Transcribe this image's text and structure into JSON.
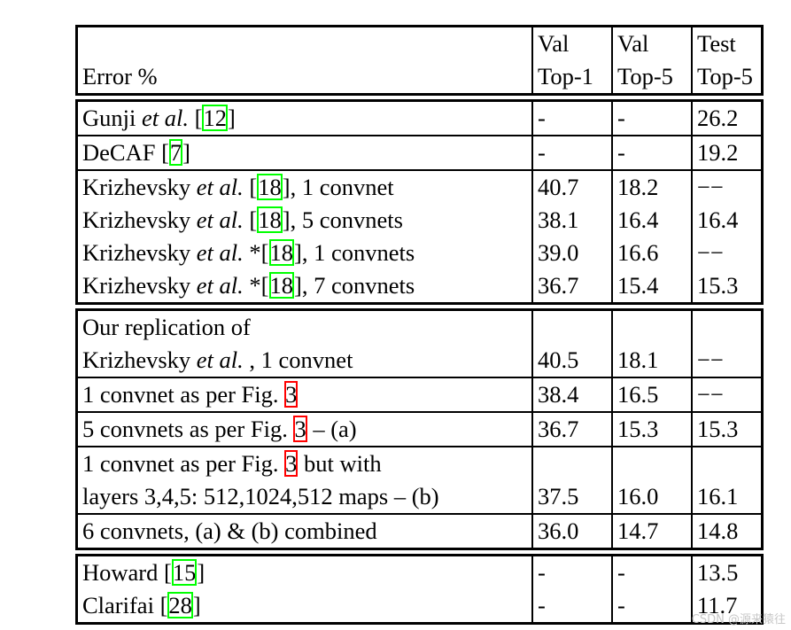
{
  "table": {
    "header": [
      [
        "",
        "Error %"
      ],
      [
        "Val",
        "Top-1"
      ],
      [
        "Val",
        "Top-5"
      ],
      [
        "Test",
        "Top-5"
      ]
    ],
    "groups": [
      {
        "rows": [
          {
            "sep": false,
            "label": [
              [
                {
                  "t": "Gunji "
                },
                {
                  "t": "et al.",
                  "i": true
                },
                {
                  "t": " "
                },
                {
                  "ref": "12",
                  "c": "green"
                }
              ]
            ],
            "values": [
              "-",
              "-",
              "26.2"
            ]
          },
          {
            "sep": true,
            "label": [
              [
                {
                  "t": "DeCAF "
                },
                {
                  "ref": "7",
                  "c": "green"
                }
              ]
            ],
            "values": [
              "-",
              "-",
              "19.2"
            ]
          },
          {
            "sep": true,
            "label": [
              [
                {
                  "t": "Krizhevsky "
                },
                {
                  "t": "et al.",
                  "i": true
                },
                {
                  "t": " "
                },
                {
                  "ref": "18",
                  "c": "green"
                },
                {
                  "t": ", 1 convnet"
                }
              ]
            ],
            "values": [
              "40.7",
              "18.2",
              "−−"
            ]
          },
          {
            "sep": false,
            "label": [
              [
                {
                  "t": "Krizhevsky "
                },
                {
                  "t": "et al.",
                  "i": true
                },
                {
                  "t": " "
                },
                {
                  "ref": "18",
                  "c": "green"
                },
                {
                  "t": ", 5 convnets"
                }
              ]
            ],
            "values": [
              "38.1",
              "16.4",
              "16.4"
            ]
          },
          {
            "sep": false,
            "label": [
              [
                {
                  "t": "Krizhevsky "
                },
                {
                  "t": "et al.",
                  "i": true
                },
                {
                  "t": " *"
                },
                {
                  "ref": "18",
                  "c": "green"
                },
                {
                  "t": ", 1 convnets"
                }
              ]
            ],
            "values": [
              "39.0",
              "16.6",
              "−−"
            ]
          },
          {
            "sep": false,
            "label": [
              [
                {
                  "t": "Krizhevsky "
                },
                {
                  "t": "et al.",
                  "i": true
                },
                {
                  "t": " *"
                },
                {
                  "ref": "18",
                  "c": "green"
                },
                {
                  "t": ", 7 convnets"
                }
              ]
            ],
            "values": [
              "36.7",
              "15.4",
              "15.3"
            ]
          }
        ]
      },
      {
        "rows": [
          {
            "sep": false,
            "label": [
              [
                {
                  "t": "Our replication of"
                }
              ],
              [
                {
                  "t": "Krizhevsky "
                },
                {
                  "t": "et al.",
                  "i": true
                },
                {
                  "t": " , 1 convnet"
                }
              ]
            ],
            "values": [
              "40.5",
              "18.1",
              "−−"
            ]
          },
          {
            "sep": true,
            "label": [
              [
                {
                  "t": "1 convnet as per Fig. "
                },
                {
                  "ref": "3",
                  "c": "red",
                  "nob": true
                }
              ]
            ],
            "values": [
              "38.4",
              "16.5",
              "−−"
            ]
          },
          {
            "sep": true,
            "label": [
              [
                {
                  "t": "5 convnets as per Fig. "
                },
                {
                  "ref": "3",
                  "c": "red",
                  "nob": true
                },
                {
                  "t": " – (a)"
                }
              ]
            ],
            "values": [
              "36.7",
              "15.3",
              "15.3"
            ]
          },
          {
            "sep": true,
            "label": [
              [
                {
                  "t": "1 convnet as per Fig. "
                },
                {
                  "ref": "3",
                  "c": "red",
                  "nob": true
                },
                {
                  "t": " but with"
                }
              ],
              [
                {
                  "t": "layers 3,4,5: 512,1024,512 maps – (b)"
                }
              ]
            ],
            "values": [
              "37.5",
              "16.0",
              "16.1"
            ]
          },
          {
            "sep": true,
            "label": [
              [
                {
                  "t": "6 convnets, (a) & (b) combined"
                }
              ]
            ],
            "values": [
              "36.0",
              "14.7",
              "14.8"
            ]
          }
        ]
      },
      {
        "rows": [
          {
            "sep": false,
            "label": [
              [
                {
                  "t": "Howard "
                },
                {
                  "ref": "15",
                  "c": "green"
                }
              ]
            ],
            "values": [
              "-",
              "-",
              "13.5"
            ]
          },
          {
            "sep": false,
            "label": [
              [
                {
                  "t": "Clarifai "
                },
                {
                  "ref": "28",
                  "c": "green"
                }
              ]
            ],
            "values": [
              "-",
              "-",
              "11.7"
            ]
          }
        ]
      }
    ]
  },
  "watermark": "CSDN @源来猿往",
  "colors": {
    "citation_box": "#00ff00",
    "figure_box": "#ff0000"
  }
}
